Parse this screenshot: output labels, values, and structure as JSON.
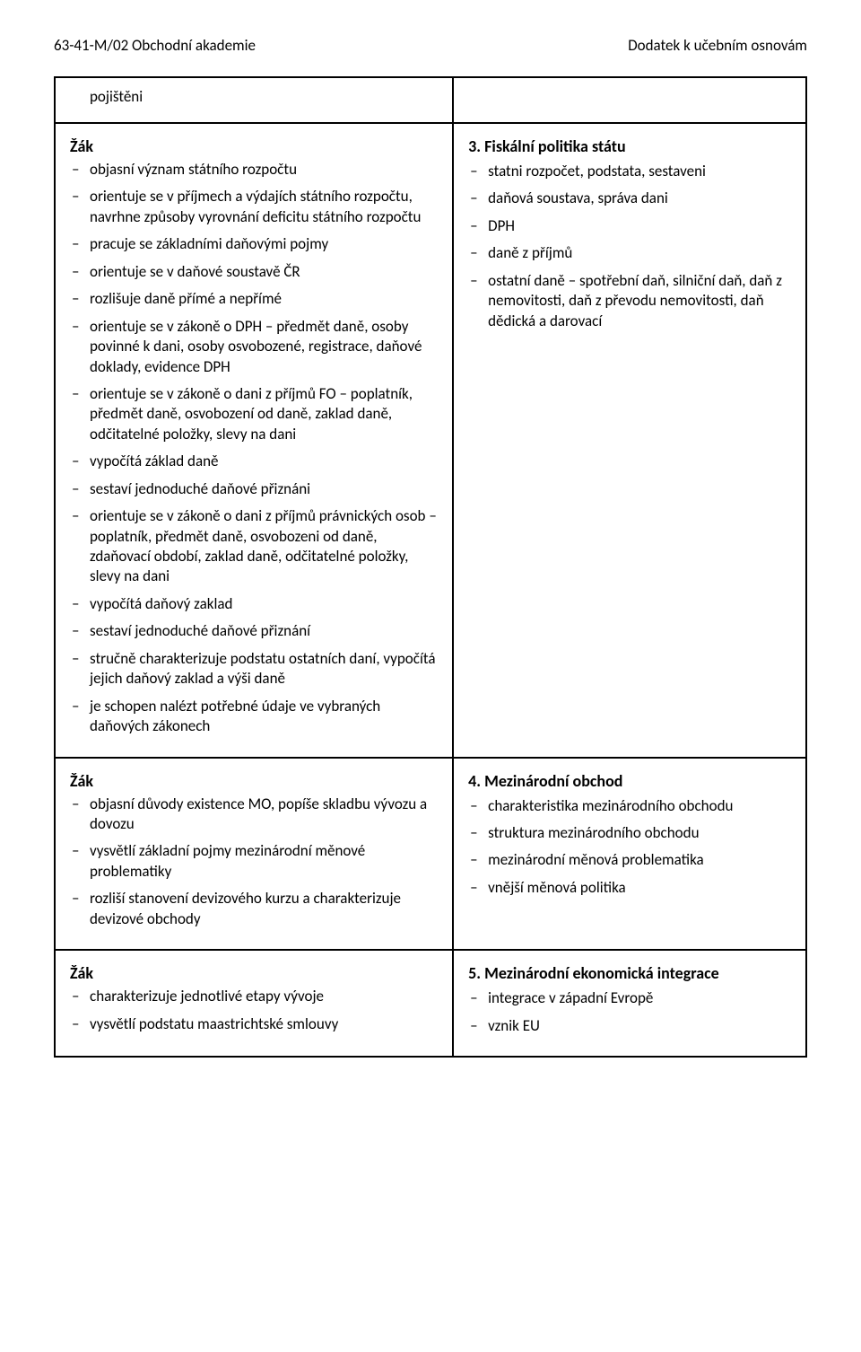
{
  "header": {
    "left": "63-41-M/02 Obchodní akademie",
    "right": "Dodatek k učebním osnovám"
  },
  "top_cell": {
    "label": "pojištěni"
  },
  "rows": [
    {
      "left": {
        "zak": "Žák",
        "items": [
          "objasní význam státního rozpočtu",
          "orientuje se v příjmech a výdajích státního rozpočtu, navrhne způsoby vyrovnání deficitu státního rozpočtu",
          "pracuje se základními daňovými pojmy",
          "orientuje se v daňové soustavě ČR",
          "rozlišuje daně přímé a nepřímé",
          "orientuje se v zákoně o DPH – předmět daně, osoby povinné k dani, osoby osvobozené, registrace, daňové doklady, evidence DPH",
          "orientuje se v zákoně o dani z příjmů FO – poplatník, předmět daně, osvobození od daně, zaklad daně, odčitatelné položky, slevy na dani",
          "vypočítá základ daně",
          "sestaví jednoduché daňové přiznáni",
          "orientuje se v zákoně o dani z příjmů právnických osob – poplatník, předmět daně, osvobozeni od daně, zdaňovací období, zaklad daně, odčitatelné položky, slevy na dani",
          "vypočítá daňový zaklad",
          "sestaví jednoduché daňové přiznání",
          "stručně charakterizuje podstatu ostatních daní, vypočítá jejich daňový zaklad a výši daně",
          "je schopen nalézt potřebné údaje ve vybraných daňových zákonech"
        ]
      },
      "right": {
        "title_num": "3.",
        "title_text": "Fiskální politika státu",
        "items": [
          "statni rozpočet, podstata, sestaveni",
          "daňová soustava, správa dani",
          "DPH",
          "daně z příjmů",
          "ostatní daně – spotřební daň, silniční daň, daň z nemovitosti, daň z převodu nemovitosti, daň dědická a darovací"
        ]
      }
    },
    {
      "left": {
        "zak": "Žák",
        "items": [
          "objasní důvody existence MO, popíše skladbu vývozu a dovozu",
          "vysvětlí základní pojmy mezinárodní měnové problematiky",
          "rozliší stanovení devizového kurzu a charakterizuje devizové obchody"
        ]
      },
      "right": {
        "title_num": "4.",
        "title_text": "Mezinárodní obchod",
        "items": [
          "charakteristika mezinárodního obchodu",
          "struktura mezinárodního obchodu",
          "mezinárodní měnová problematika",
          "vnější měnová politika"
        ]
      }
    },
    {
      "left": {
        "zak": "Žák",
        "items": [
          "charakterizuje jednotlivé etapy vývoje",
          "vysvětlí podstatu maastrichtské smlouvy"
        ]
      },
      "right": {
        "title_num": "5.",
        "title_text": "Mezinárodní ekonomická integrace",
        "items": [
          "integrace v západní Evropě",
          "vznik EU"
        ]
      }
    }
  ]
}
